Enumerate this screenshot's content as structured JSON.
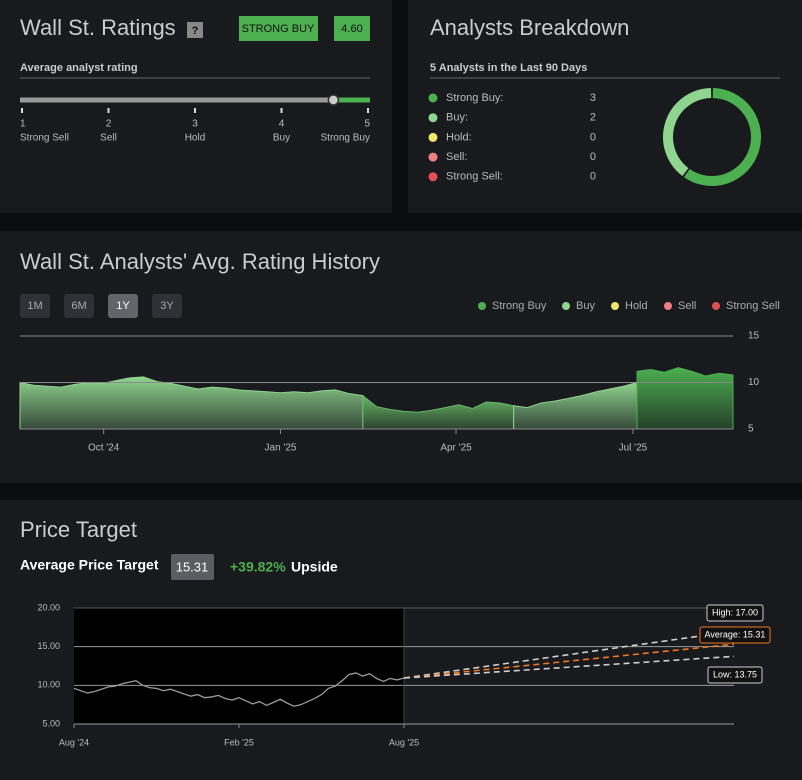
{
  "ratings": {
    "title": "Wall St. Ratings",
    "help": "?",
    "badge": "STRONG BUY",
    "score": 4.6,
    "score_label": "4.60",
    "subtitle": "Average analyst rating",
    "range": [
      1,
      5
    ],
    "scale": [
      {
        "value": 1,
        "name": "Strong Sell"
      },
      {
        "value": 2,
        "name": "Sell"
      },
      {
        "value": 3,
        "name": "Hold"
      },
      {
        "value": 4,
        "name": "Buy"
      },
      {
        "value": 5,
        "name": "Strong Buy"
      }
    ]
  },
  "breakdown": {
    "title": "Analysts Breakdown",
    "subtitle": "5 Analysts in the Last 90 Days",
    "items": [
      {
        "name": "Strong Buy:",
        "value": 3,
        "color": "#4caf50"
      },
      {
        "name": "Buy:",
        "value": 2,
        "color": "#8fd48f"
      },
      {
        "name": "Hold:",
        "value": 0,
        "color": "#f2e56b"
      },
      {
        "name": "Sell:",
        "value": 0,
        "color": "#f08080"
      },
      {
        "name": "Strong Sell:",
        "value": 0,
        "color": "#e05252"
      }
    ]
  },
  "history": {
    "title": "Wall St. Analysts' Avg. Rating History",
    "buttons": [
      "1M",
      "6M",
      "1Y",
      "3Y"
    ],
    "active": "1Y",
    "legend": [
      {
        "name": "Strong Buy",
        "color": "#4caf50"
      },
      {
        "name": "Buy",
        "color": "#8fd48f"
      },
      {
        "name": "Hold",
        "color": "#f2e56b"
      },
      {
        "name": "Sell",
        "color": "#f08080"
      },
      {
        "name": "Strong Sell",
        "color": "#e05252"
      }
    ],
    "chart": {
      "type": "area",
      "ylim": [
        5,
        15
      ],
      "yticks": [
        15,
        10,
        5
      ],
      "xlim": [
        0,
        52
      ],
      "xticks": [
        {
          "value": 6.1,
          "label": "Oct '24"
        },
        {
          "value": 19,
          "label": "Jan '25"
        },
        {
          "value": 31.8,
          "label": "Apr '25"
        },
        {
          "value": 44.7,
          "label": "Jul '25"
        }
      ],
      "series": [
        {
          "color": "#8fd48f",
          "x": [
            0,
            1,
            2,
            3,
            4,
            5,
            6,
            7,
            8,
            9,
            10,
            11,
            12,
            13,
            14,
            15,
            16,
            17,
            18,
            19,
            20,
            21,
            22,
            23,
            24,
            25
          ],
          "values": [
            10,
            9.7,
            9.6,
            9.5,
            9.8,
            10,
            9.9,
            10.2,
            10.5,
            10.6,
            10.1,
            9.9,
            9.6,
            9.3,
            9.5,
            9.4,
            9.2,
            9.1,
            9,
            8.9,
            9,
            8.9,
            9.1,
            9.2,
            8.8,
            8.6
          ]
        },
        {
          "color": "#66b866",
          "x": [
            25,
            26,
            27,
            28,
            29,
            30,
            31,
            32,
            33,
            34,
            35,
            36
          ],
          "values": [
            8.6,
            7.4,
            7.1,
            6.9,
            6.8,
            7,
            7.3,
            7.6,
            7.2,
            7.9,
            7.8,
            7.5
          ]
        },
        {
          "color": "#8fd48f",
          "x": [
            36,
            37,
            38,
            39,
            40,
            41,
            42,
            43,
            44,
            45
          ],
          "values": [
            7.5,
            7.3,
            7.8,
            8,
            8.3,
            8.6,
            9,
            9.3,
            9.6,
            10
          ]
        },
        {
          "color": "#4caf50",
          "x": [
            45,
            46,
            47,
            48,
            49,
            50,
            51,
            52
          ],
          "values": [
            11.2,
            11.4,
            11.1,
            11.6,
            11.2,
            10.7,
            11,
            10.8
          ]
        }
      ]
    }
  },
  "price_target": {
    "title": "Price Target",
    "label": "Average Price Target",
    "average": "15.31",
    "upside": "+39.82%",
    "upside_word": "Upside",
    "chart": {
      "type": "line",
      "ylim": [
        5,
        20
      ],
      "yticks": [
        {
          "value": 20,
          "label": "20.00"
        },
        {
          "value": 15,
          "label": "15.00"
        },
        {
          "value": 10,
          "label": "10.00"
        },
        {
          "value": 5,
          "label": "5.00"
        }
      ],
      "xlim": [
        0,
        24
      ],
      "xticks": [
        {
          "value": 0,
          "label": "Aug '24"
        },
        {
          "value": 6,
          "label": "Feb '25"
        },
        {
          "value": 12,
          "label": "Aug '25"
        }
      ],
      "price": {
        "color": "#9a9a9a",
        "x": [
          0,
          0.25,
          0.5,
          0.75,
          1,
          1.25,
          1.5,
          1.75,
          2,
          2.25,
          2.5,
          2.75,
          3,
          3.25,
          3.5,
          3.75,
          4,
          4.25,
          4.5,
          4.75,
          5,
          5.25,
          5.5,
          5.75,
          6,
          6.25,
          6.5,
          6.75,
          7,
          7.25,
          7.5,
          7.75,
          8,
          8.25,
          8.5,
          8.75,
          9,
          9.25,
          9.5,
          9.75,
          10,
          10.25,
          10.5,
          10.75,
          11,
          11.25,
          11.5,
          11.75,
          12
        ],
        "values": [
          9.6,
          9.3,
          9,
          9.2,
          9.5,
          9.8,
          9.9,
          10.2,
          10.4,
          10.6,
          10,
          9.7,
          9.6,
          9.3,
          9.5,
          9.2,
          8.9,
          8.6,
          8.8,
          8.4,
          8.5,
          8.7,
          8.3,
          8.1,
          8.4,
          8,
          7.6,
          7.9,
          7.4,
          7.8,
          8.2,
          7.7,
          7.3,
          7.5,
          7.9,
          8.3,
          8.8,
          9.6,
          9.9,
          10.6,
          11.4,
          11.6,
          11.2,
          11.5,
          10.9,
          10.5,
          10.9,
          10.7,
          10.95
        ]
      },
      "targets": [
        {
          "label": "High: 17.00",
          "value": 17,
          "color": "#cfcfcf"
        },
        {
          "label": "Average: 15.31",
          "value": 15.31,
          "color": "#f07820"
        },
        {
          "label": "Low: 13.75",
          "value": 13.75,
          "color": "#cfcfcf"
        }
      ]
    }
  }
}
